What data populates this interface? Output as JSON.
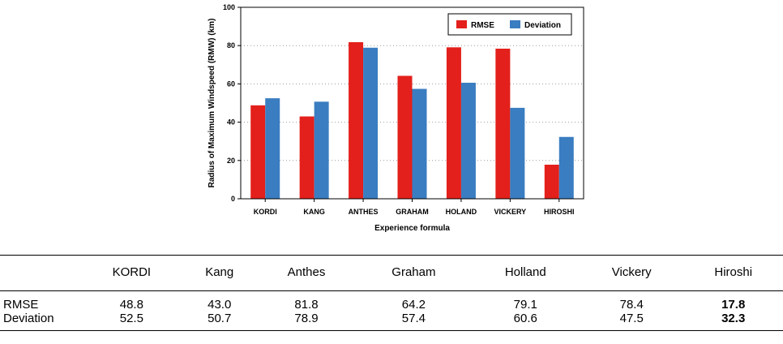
{
  "chart_data": {
    "type": "bar",
    "categories": [
      "KORDI",
      "KANG",
      "ANTHES",
      "GRAHAM",
      "HOLAND",
      "VICKERY",
      "HIROSHI"
    ],
    "series": [
      {
        "name": "RMSE",
        "color": "#e3201b",
        "values": [
          48.8,
          43.0,
          81.8,
          64.2,
          79.1,
          78.4,
          17.8
        ]
      },
      {
        "name": "Deviation",
        "color": "#3a7dc1",
        "values": [
          52.5,
          50.7,
          78.9,
          57.4,
          60.6,
          47.5,
          32.3
        ]
      }
    ],
    "xlabel": "Experience formula",
    "ylabel": "Radius of Maximum Windspeed (RMW) (km)",
    "ylim": [
      0,
      100
    ],
    "yticks": [
      "0",
      "20",
      "40",
      "60",
      "80",
      "100"
    ],
    "grid": "horizontal dotted",
    "legend": "top-right"
  },
  "table": {
    "columns": [
      "KORDI",
      "Kang",
      "Anthes",
      "Graham",
      "Holland",
      "Vickery",
      "Hiroshi"
    ],
    "rows": [
      {
        "label": "RMSE",
        "values": [
          "48.8",
          "43.0",
          "81.8",
          "64.2",
          "79.1",
          "78.4",
          "17.8"
        ]
      },
      {
        "label": "Deviation",
        "values": [
          "52.5",
          "50.7",
          "78.9",
          "57.4",
          "60.6",
          "47.5",
          "32.3"
        ]
      }
    ]
  }
}
